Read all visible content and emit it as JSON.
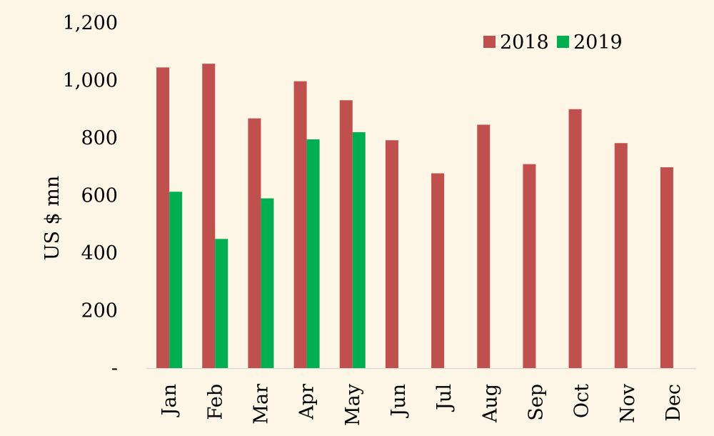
{
  "chart_data": {
    "type": "bar",
    "title": "",
    "xlabel": "",
    "ylabel": "US $ mn",
    "ylim": [
      0,
      1200
    ],
    "y_ticks": [
      0,
      200,
      400,
      600,
      800,
      1000,
      1200
    ],
    "y_tick_labels": [
      "-",
      "200",
      "400",
      "600",
      "800",
      "1,000",
      "1,200"
    ],
    "grid": false,
    "legend_position": "top-right",
    "categories": [
      "Jan",
      "Feb",
      "Mar",
      "Apr",
      "May",
      "Jun",
      "Jul",
      "Aug",
      "Sep",
      "Oct",
      "Nov",
      "Dec"
    ],
    "series": [
      {
        "name": "2018",
        "color": "#c0504d",
        "values": [
          1045,
          1058,
          868,
          997,
          931,
          792,
          677,
          846,
          709,
          900,
          782,
          698
        ]
      },
      {
        "name": "2019",
        "color": "#00b050",
        "values": [
          613,
          449,
          590,
          795,
          820,
          null,
          null,
          null,
          null,
          null,
          null,
          null
        ]
      }
    ]
  }
}
